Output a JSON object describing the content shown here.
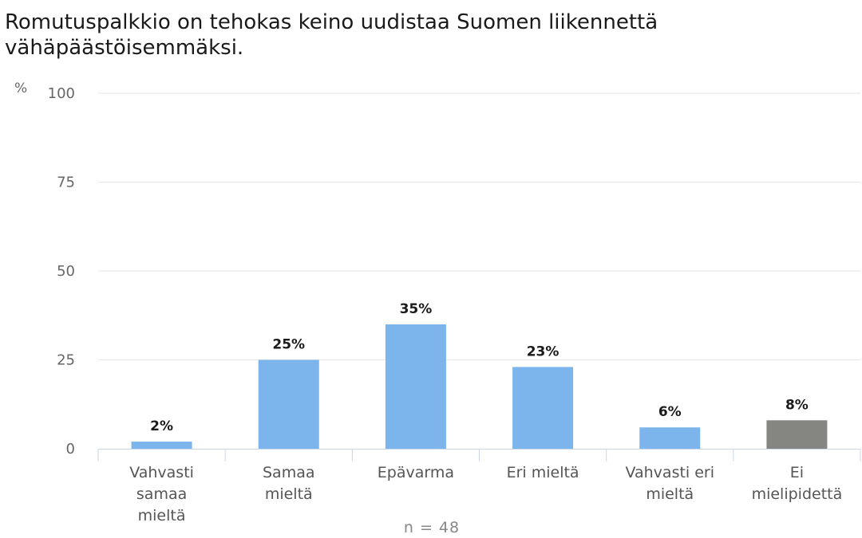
{
  "chart_data": {
    "type": "bar",
    "title": "Romutuspalkkio on tehokas keino uudistaa Suomen liikennettä vähäpäästöisemmäksi.",
    "ylabel": "%",
    "xlabel": "",
    "ylim": [
      0,
      100
    ],
    "yticks": [
      0,
      25,
      50,
      75,
      100
    ],
    "grid": true,
    "categories": [
      [
        "Vahvasti",
        "samaa",
        "mieltä"
      ],
      [
        "Samaa",
        "mieltä"
      ],
      [
        "Epävarma"
      ],
      [
        "Eri mieltä"
      ],
      [
        "Vahvasti eri",
        "mieltä"
      ],
      [
        "Ei",
        "mielipidettä"
      ]
    ],
    "values": [
      2,
      25,
      35,
      23,
      6,
      8
    ],
    "data_labels": [
      "2%",
      "25%",
      "35%",
      "23%",
      "6%",
      "8%"
    ],
    "colors": [
      "#7cb5ec",
      "#7cb5ec",
      "#7cb5ec",
      "#7cb5ec",
      "#7cb5ec",
      "#858582"
    ],
    "note": "n = 48"
  }
}
